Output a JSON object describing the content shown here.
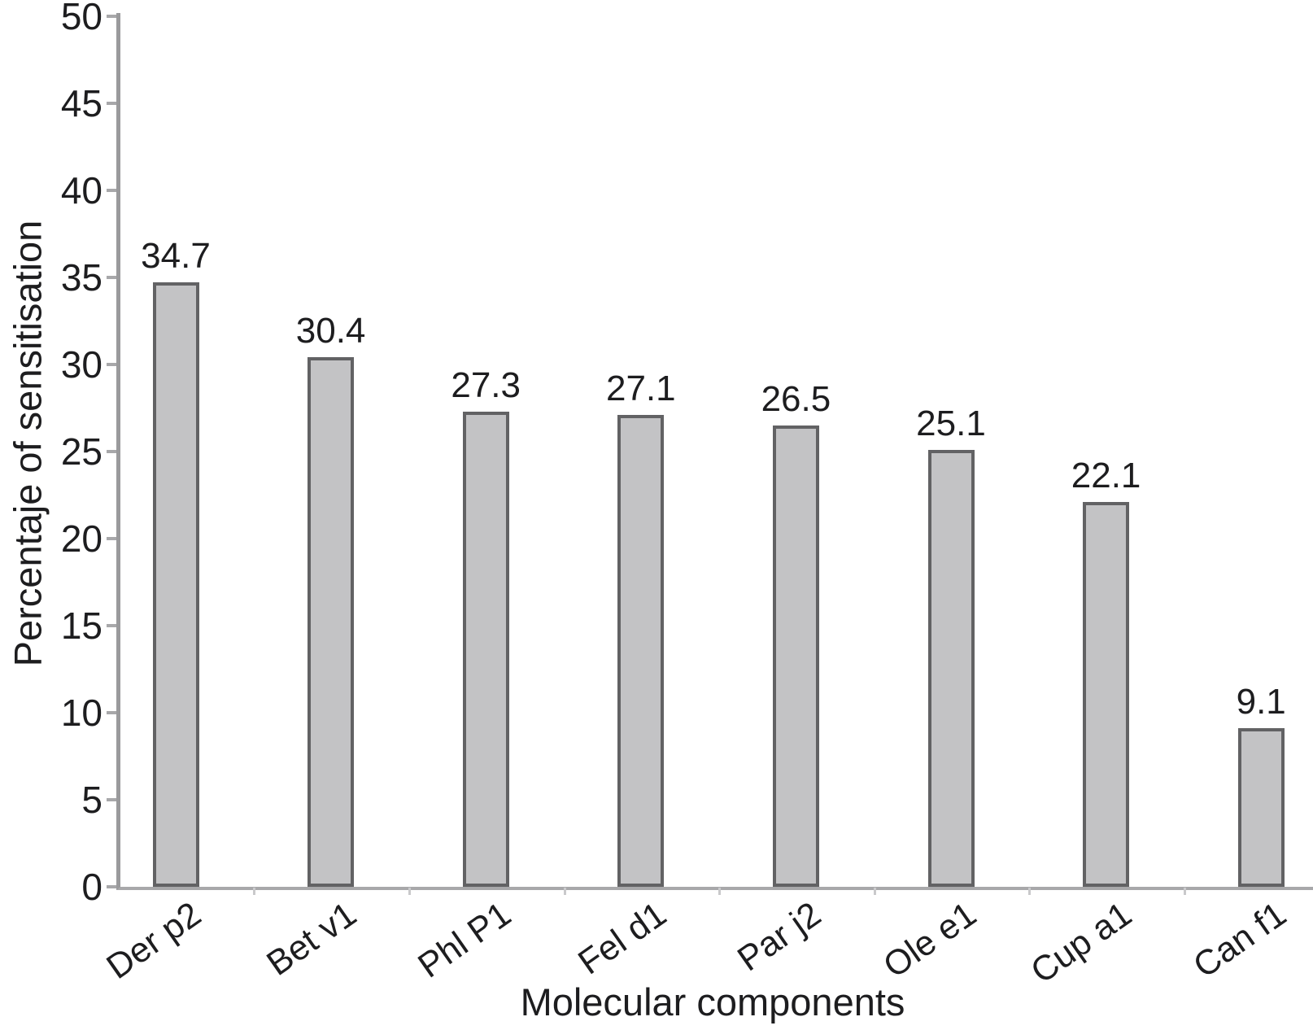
{
  "chart_data": {
    "type": "bar",
    "title": "",
    "categories": [
      "Der p2",
      "Bet v1",
      "Phl P1",
      "Fel d1",
      "Par j2",
      "Ole e1",
      "Cup a1",
      "Can f1"
    ],
    "values": [
      34.7,
      30.4,
      27.3,
      27.1,
      26.5,
      25.1,
      22.1,
      9.1
    ],
    "value_labels": [
      "34.7",
      "30.4",
      "27.3",
      "27.1",
      "26.5",
      "25.1",
      "22.1",
      "9.1"
    ],
    "xlabel": "Molecular components",
    "ylabel": "Percentaje of sensitisation",
    "ylim": [
      0,
      50
    ],
    "yticks": [
      0,
      5,
      10,
      15,
      20,
      25,
      30,
      35,
      40,
      45,
      50
    ],
    "grid": false,
    "legend": null,
    "colors": {
      "bar_fill": "#c3c3c5",
      "bar_border": "#626264",
      "axis_line": "#9a9a9c",
      "tick_mark": "#a8a8aa",
      "text": "#1d1d1f"
    }
  }
}
